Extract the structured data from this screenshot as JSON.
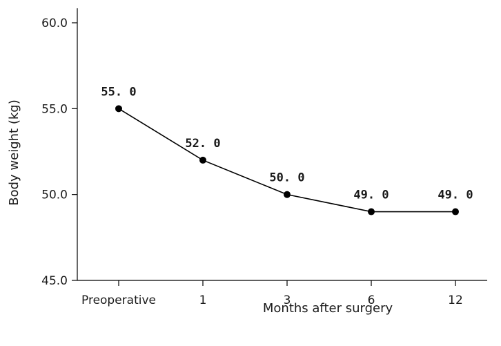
{
  "chart_data": {
    "type": "line",
    "categories": [
      "Preoperative",
      "1",
      "3",
      "6",
      "12"
    ],
    "values": [
      55.0,
      52.0,
      50.0,
      49.0,
      49.0
    ],
    "data_labels": [
      "55. 0",
      "52. 0",
      "50. 0",
      "49. 0",
      "49. 0"
    ],
    "xlabel": "Months after surgery",
    "ylabel": "Body weight (kg)",
    "ylim": [
      45.0,
      60.0
    ],
    "yticks": [
      45.0,
      50.0,
      55.0,
      60.0
    ],
    "ytick_labels": [
      "45.0",
      "50.0",
      "55.0",
      "60.0"
    ],
    "grid": false,
    "colors": {
      "line": "#000000",
      "marker": "#000000"
    }
  }
}
